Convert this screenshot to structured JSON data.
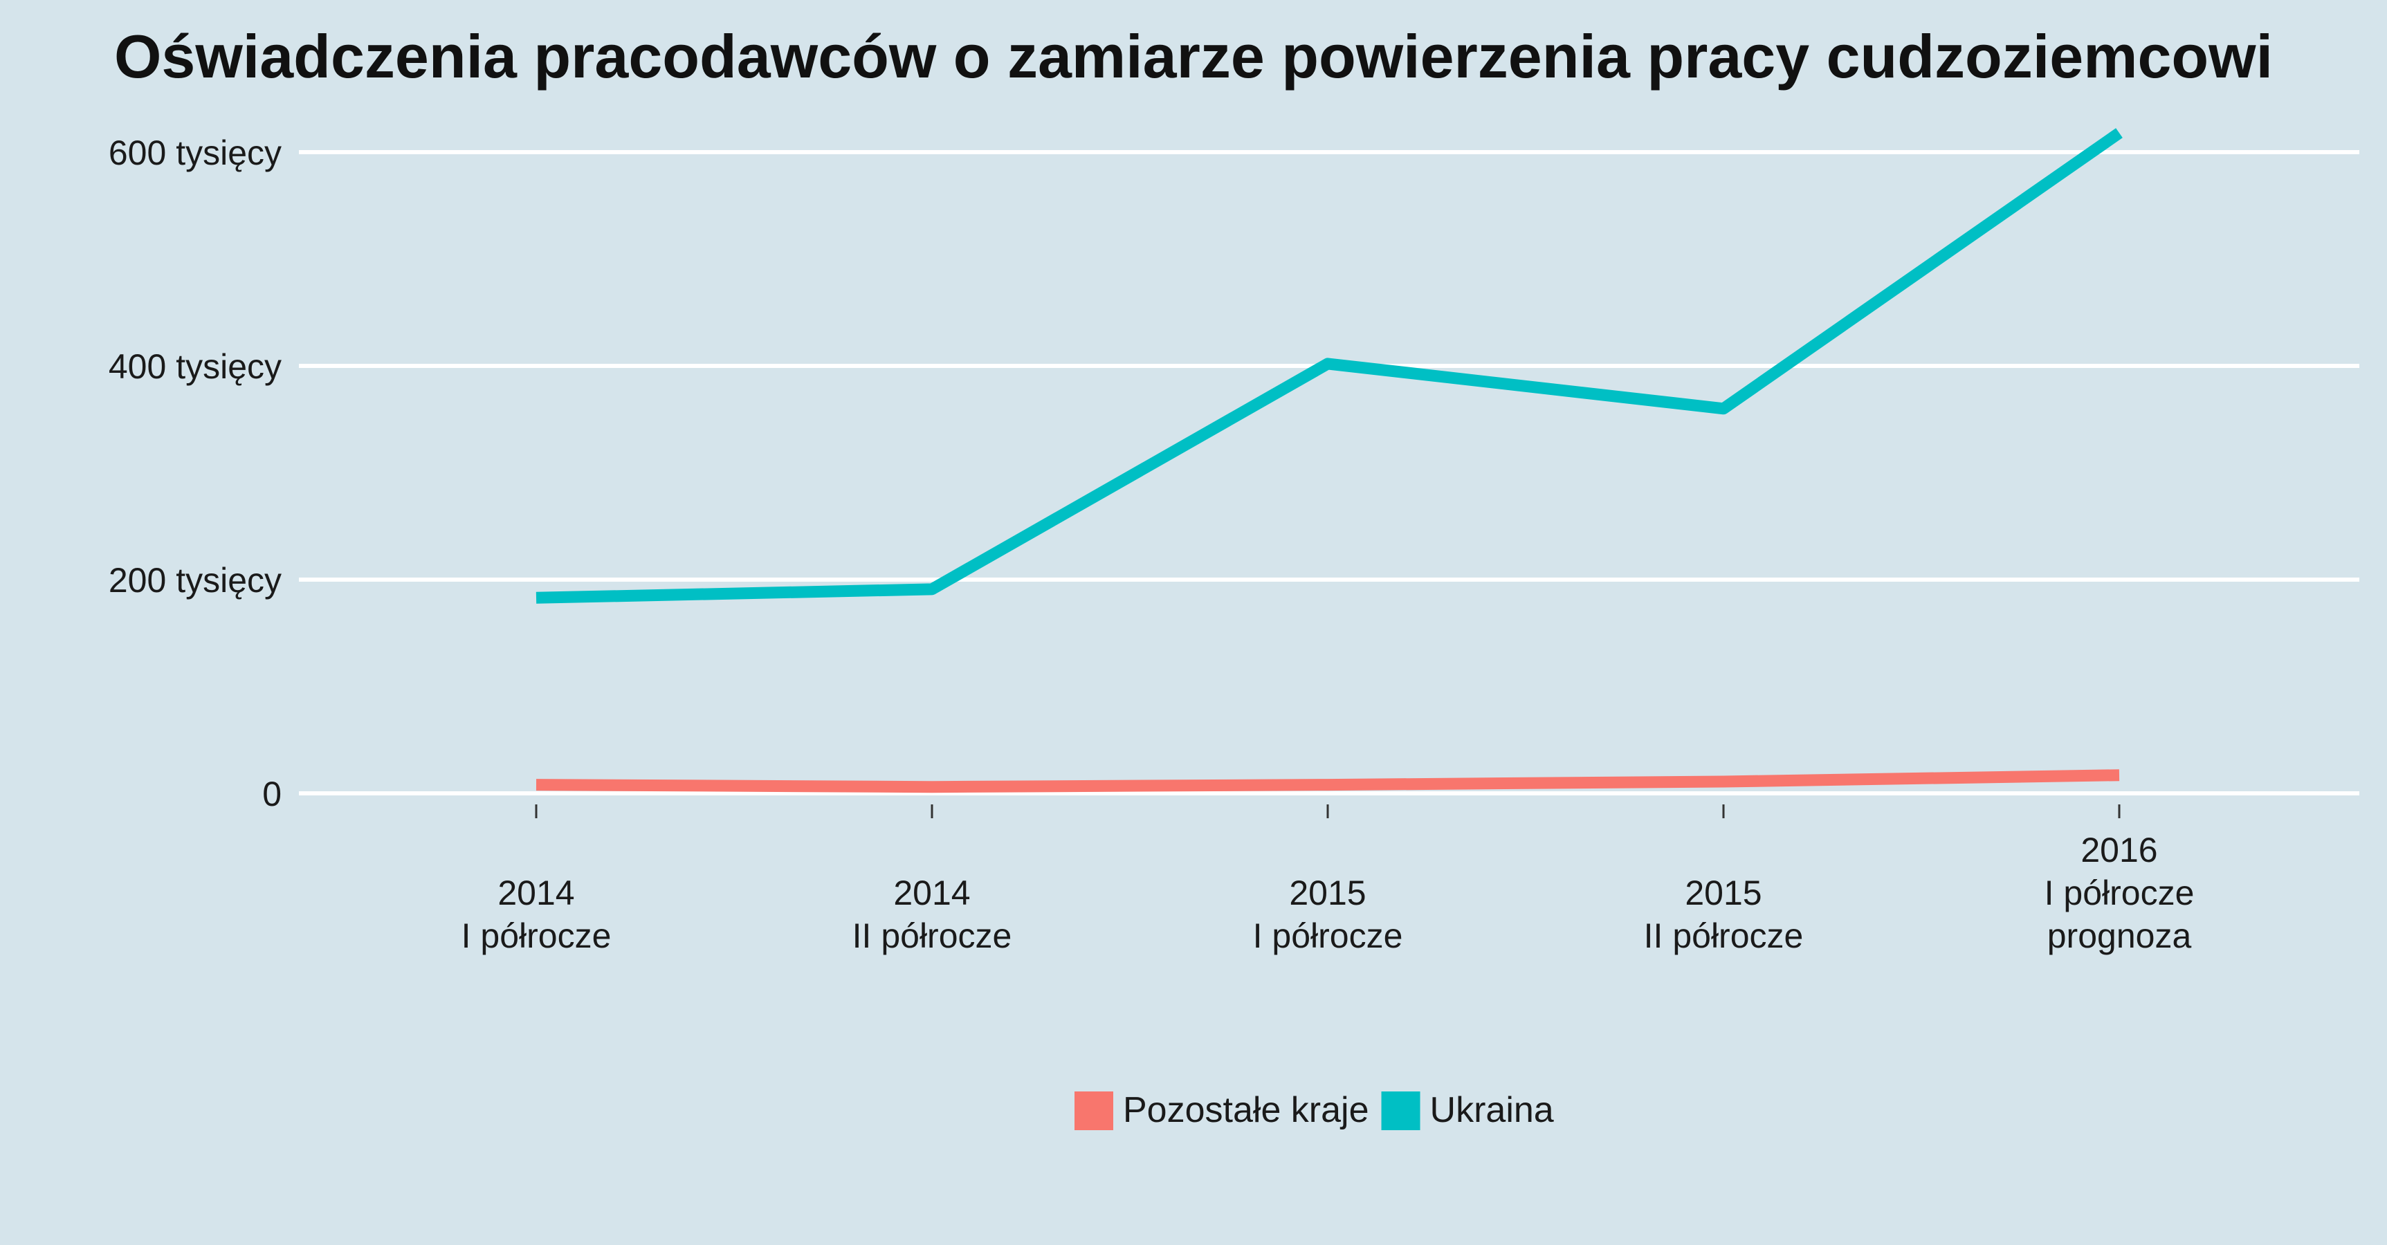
{
  "chart_data": {
    "type": "line",
    "title": "Oświadczenia pracodawców o zamiarze powierzenia pracy cudzoziemcowi",
    "xlabel": "",
    "ylabel": "",
    "categories": [
      [
        "2014",
        "I półrocze"
      ],
      [
        "2014",
        "II półrocze"
      ],
      [
        "2015",
        "I półrocze"
      ],
      [
        "2015",
        "II półrocze"
      ],
      [
        "2016",
        "I półrocze",
        "prognoza"
      ]
    ],
    "y_ticks": [
      {
        "value": 0,
        "label": "0"
      },
      {
        "value": 200000,
        "label": "200 tysięcy"
      },
      {
        "value": 400000,
        "label": "400 tysięcy"
      },
      {
        "value": 600000,
        "label": "600 tysięcy"
      }
    ],
    "ylim": [
      -20000,
      615000
    ],
    "grid": "horizontal",
    "legend_position": "bottom",
    "series": [
      {
        "name": "Pozostałe kraje",
        "color": "#f8766d",
        "values": [
          8000,
          6000,
          8000,
          11000,
          17000
        ]
      },
      {
        "name": "Ukraina",
        "color": "#00bfc4",
        "values": [
          183000,
          191000,
          402000,
          360000,
          618000
        ]
      }
    ]
  }
}
